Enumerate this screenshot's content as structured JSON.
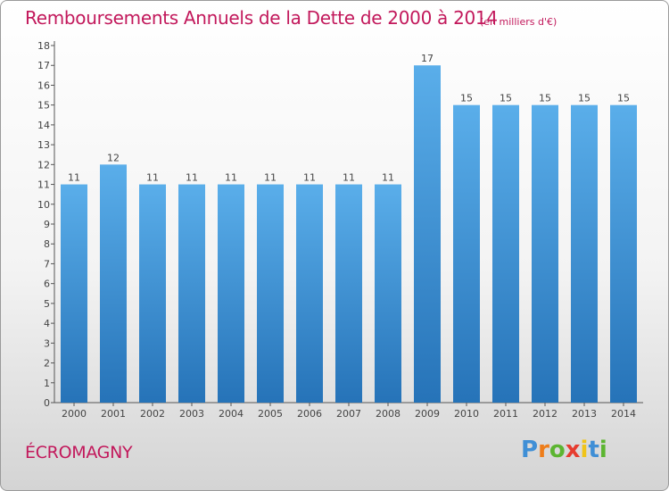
{
  "title": "Remboursements Annuels de la Dette de 2000 à 2014",
  "unit": "(en milliers d'€)",
  "commune": "ÉCROMAGNY",
  "logo": {
    "letters": [
      "P",
      "r",
      "o",
      "x",
      "i",
      "t",
      "i"
    ],
    "colors": [
      "#3f8fd6",
      "#ee7d1a",
      "#5cb531",
      "#e63c2f",
      "#f0c419",
      "#3f8fd6",
      "#5cb531"
    ]
  },
  "chart_data": {
    "type": "bar",
    "categories": [
      "2000",
      "2001",
      "2002",
      "2003",
      "2004",
      "2005",
      "2006",
      "2007",
      "2008",
      "2009",
      "2010",
      "2011",
      "2012",
      "2013",
      "2014"
    ],
    "values": [
      11,
      12,
      11,
      11,
      11,
      11,
      11,
      11,
      11,
      17,
      15,
      15,
      15,
      15,
      15
    ],
    "data_labels": [
      "11",
      "12",
      "11",
      "11",
      "11",
      "11",
      "11",
      "11",
      "11",
      "17",
      "15",
      "15",
      "15",
      "15",
      "15"
    ],
    "yticks": [
      "0",
      "1",
      "2",
      "3",
      "4",
      "5",
      "6",
      "7",
      "8",
      "9",
      "10",
      "11",
      "12",
      "13",
      "14",
      "15",
      "16",
      "17",
      "18"
    ],
    "ylim": [
      0,
      18
    ],
    "grid": false,
    "bar_color_top": "#5aaeea",
    "bar_color_bottom": "#2673b8"
  }
}
